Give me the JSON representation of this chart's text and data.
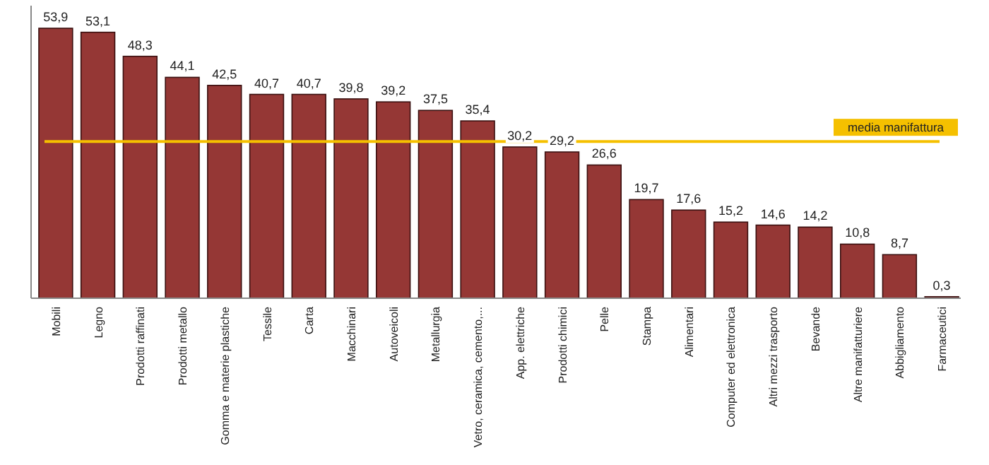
{
  "chart_data": {
    "type": "bar",
    "categories": [
      "Mobili",
      "Legno",
      "Prodotti raffinati",
      "Prodotti metallo",
      "Gomma e materie plastiche",
      "Tessile",
      "Carta",
      "Macchinari",
      "Autoveicoli",
      "Metallurgia",
      "Vetro, ceramica, cemento,...",
      "App. elettriche",
      "Prodotti chimici",
      "Pelle",
      "Stampa",
      "Alimentari",
      "Computer ed elettronica",
      "Altri mezzi trasporto",
      "Bevande",
      "Altre manifatturiere",
      "Abbigliamento",
      "Farmaceutici"
    ],
    "values": [
      53.9,
      53.1,
      48.3,
      44.1,
      42.5,
      40.7,
      40.7,
      39.8,
      39.2,
      37.5,
      35.4,
      30.2,
      29.2,
      26.6,
      19.7,
      17.6,
      15.2,
      14.6,
      14.2,
      10.8,
      8.7,
      0.3
    ],
    "value_labels": [
      "53,9",
      "53,1",
      "48,3",
      "44,1",
      "42,5",
      "40,7",
      "40,7",
      "39,8",
      "39,2",
      "37,5",
      "35,4",
      "30,2",
      "29,2",
      "26,6",
      "19,7",
      "17,6",
      "15,2",
      "14,6",
      "14,2",
      "10,8",
      "8,7",
      "0,3"
    ],
    "color": "#953735",
    "ref_lines": [
      {
        "axis": "y",
        "value": 31.3,
        "label": "media manifattura",
        "color": "#f5c000"
      }
    ]
  }
}
